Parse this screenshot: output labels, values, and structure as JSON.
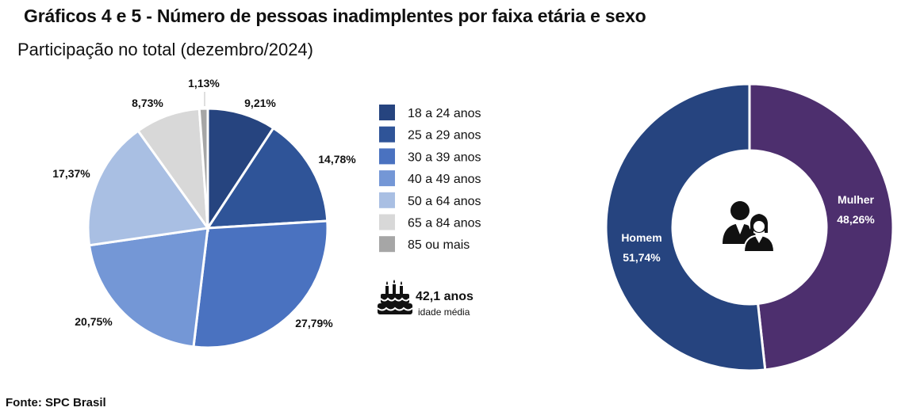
{
  "title": "Gráficos 4 e 5 - Número de pessoas inadimplentes por faixa etária e sexo",
  "subtitle": "Participação no total (dezembro/2024)",
  "source": "Fonte: SPC Brasil",
  "average_age": {
    "value": "42,1 anos",
    "label": "idade média",
    "icon": "birthday-cake-icon"
  },
  "gender_icon": "people-icon",
  "chart_data": [
    {
      "type": "pie",
      "categories": [
        "18 a 24 anos",
        "25 a 29 anos",
        "30 a 39 anos",
        "40 a 49 anos",
        "50 a 64 anos",
        "65 a 84 anos",
        "85 ou mais"
      ],
      "values": [
        9.21,
        14.78,
        27.79,
        20.75,
        17.37,
        8.73,
        1.13
      ],
      "labels": [
        "9,21%",
        "14,78%",
        "27,79%",
        "20,75%",
        "17,37%",
        "8,73%",
        "1,13%"
      ],
      "colors": [
        "#26447f",
        "#2f5498",
        "#4a72c0",
        "#7497d6",
        "#a9bfe3",
        "#d8d8d8",
        "#a6a6a6"
      ],
      "legend": "right"
    },
    {
      "type": "pie",
      "donut": true,
      "categories": [
        "Mulher",
        "Homem"
      ],
      "values": [
        48.26,
        51.74
      ],
      "labels": [
        "48,26%",
        "51,74%"
      ],
      "colors": [
        "#4d2f6e",
        "#26447f"
      ]
    }
  ]
}
